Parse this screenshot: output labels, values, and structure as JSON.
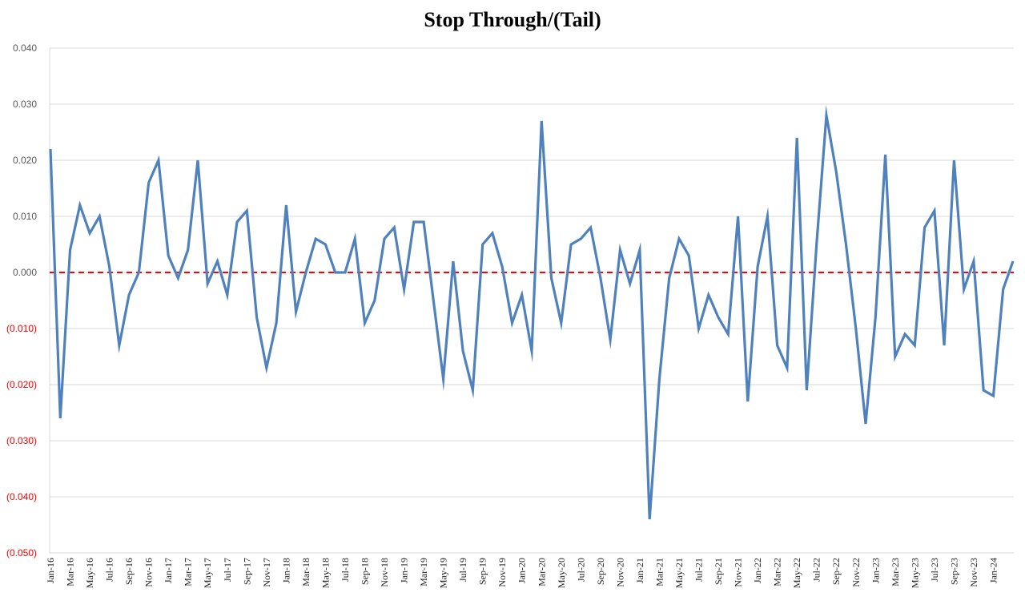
{
  "chart_data": {
    "type": "line",
    "title": "Stop Through/(Tail)",
    "xlabel": "",
    "ylabel": "",
    "ylim": [
      -0.05,
      0.04
    ],
    "y_ticks": [
      0.04,
      0.03,
      0.02,
      0.01,
      0.0,
      -0.01,
      -0.02,
      -0.03,
      -0.04,
      -0.05
    ],
    "y_tick_labels": [
      "0.040",
      "0.030",
      "0.020",
      "0.010",
      "0.000",
      "(0.010)",
      "(0.020)",
      "(0.030)",
      "(0.040)",
      "(0.050)"
    ],
    "x_tick_labels": [
      "Jan-16",
      "Mar-16",
      "May-16",
      "Jul-16",
      "Sep-16",
      "Nov-16",
      "Jan-17",
      "Mar-17",
      "May-17",
      "Jul-17",
      "Sep-17",
      "Nov-17",
      "Jan-18",
      "Mar-18",
      "May-18",
      "Jul-18",
      "Sep-18",
      "Nov-18",
      "Jan-19",
      "Mar-19",
      "May-19",
      "Jul-19",
      "Sep-19",
      "Nov-19",
      "Jan-20",
      "Mar-20",
      "May-20",
      "Jul-20",
      "Sep-20",
      "Nov-20",
      "Jan-21",
      "Mar-21",
      "May-21",
      "Jul-21",
      "Sep-21",
      "Nov-21",
      "Jan-22",
      "Mar-22",
      "May-22",
      "Jul-22",
      "Sep-22",
      "Nov-22",
      "Jan-23",
      "Mar-23",
      "May-23",
      "Jul-23",
      "Sep-23",
      "Nov-23",
      "Jan-24"
    ],
    "grid": true,
    "series": [
      {
        "values": [
          0.022,
          -0.026,
          0.004,
          0.012,
          0.007,
          0.01,
          0.001,
          -0.013,
          -0.004,
          0.0,
          0.016,
          0.02,
          0.003,
          -0.001,
          0.004,
          0.02,
          -0.002,
          0.002,
          -0.004,
          0.009,
          0.011,
          -0.008,
          -0.017,
          -0.009,
          0.012,
          -0.007,
          0.0,
          0.006,
          0.005,
          0.0,
          0.0,
          0.006,
          -0.009,
          -0.005,
          0.006,
          0.008,
          -0.003,
          0.009,
          0.009,
          -0.005,
          -0.019,
          0.002,
          -0.014,
          -0.021,
          0.005,
          0.007,
          0.001,
          -0.009,
          -0.004,
          -0.014,
          0.027,
          -0.001,
          -0.009,
          0.005,
          0.006,
          0.008,
          -0.001,
          -0.012,
          0.004,
          -0.002,
          0.004,
          -0.044,
          -0.019,
          -0.001,
          0.006,
          0.003,
          -0.01,
          -0.004,
          -0.008,
          -0.011,
          0.01,
          -0.023,
          0.001,
          0.01,
          -0.013,
          -0.017,
          0.024,
          -0.021,
          0.005,
          0.028,
          0.018,
          0.005,
          -0.01,
          -0.027,
          -0.008,
          0.021,
          -0.015,
          -0.011,
          -0.013,
          0.008,
          0.011,
          -0.013,
          0.02,
          -0.003,
          0.002,
          -0.021,
          -0.022,
          -0.003,
          0.002
        ],
        "color": "#4f81bd"
      }
    ],
    "reference_line": {
      "y": 0.0,
      "color": "#ff0000",
      "style": "dashed"
    },
    "axis_label_colors": {
      "positive": "#595959",
      "negative": "#ff0000"
    },
    "gridline_color": "#d9d9d9"
  }
}
